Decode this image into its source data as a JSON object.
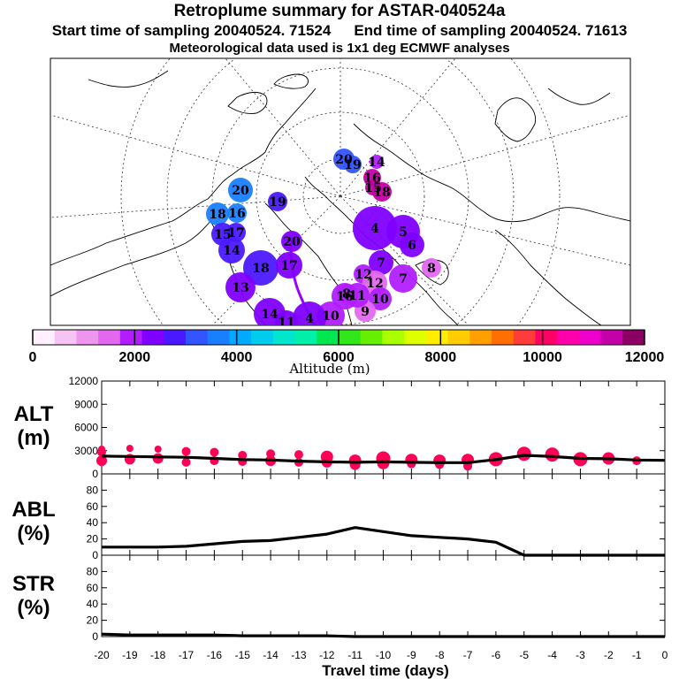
{
  "header": {
    "title": "Retroplume summary for ASTAR-040524a",
    "start_label": "Start time of sampling 20040524. 71524",
    "end_label": "End time of sampling 20040524. 71613",
    "met_label": "Meteorological data used is 1x1 deg ECMWF analyses"
  },
  "colorbar": {
    "colors": [
      "#fff0ff",
      "#f5c4f5",
      "#ee96ee",
      "#e467f0",
      "#b21dff",
      "#7f00ff",
      "#4b19ff",
      "#3355ff",
      "#1a7fff",
      "#00aaff",
      "#00ccee",
      "#00e6cc",
      "#00f0aa",
      "#00e650",
      "#33e61a",
      "#66f000",
      "#aaff00",
      "#ddff00",
      "#ffee00",
      "#ffcc00",
      "#ffa000",
      "#ff7000",
      "#ff3c3c",
      "#ff0066",
      "#ff00aa",
      "#ee00cc",
      "#c400a8",
      "#8c0064"
    ],
    "tick_labels": [
      "0",
      "2000",
      "4000",
      "6000",
      "8000",
      "10000",
      "12000"
    ],
    "label": "Altitude (m)"
  },
  "map": {
    "labels": [
      {
        "text": "20",
        "color": "#3355ff"
      },
      {
        "text": "19",
        "color": "#3355ff"
      },
      {
        "text": "14",
        "color": "#b21dff"
      },
      {
        "text": "16",
        "color": "#c400a8"
      },
      {
        "text": "18",
        "color": "#c400a8"
      },
      {
        "text": "15",
        "color": "#c400a8"
      },
      {
        "text": "20",
        "color": "#1a7fff"
      },
      {
        "text": "18",
        "color": "#1a7fff"
      },
      {
        "text": "16",
        "color": "#1a7fff"
      },
      {
        "text": "19",
        "color": "#4b19ff"
      },
      {
        "text": "15",
        "color": "#4b19ff"
      },
      {
        "text": "17",
        "color": "#4b19ff"
      },
      {
        "text": "14",
        "color": "#4b19ff"
      },
      {
        "text": "18",
        "color": "#4b19ff"
      },
      {
        "text": "20",
        "color": "#7f00ff"
      },
      {
        "text": "13",
        "color": "#7f00ff"
      },
      {
        "text": "17",
        "color": "#7f00ff"
      },
      {
        "text": "14",
        "color": "#7f00ff"
      },
      {
        "text": "4",
        "color": "#7f00ff"
      },
      {
        "text": "5",
        "color": "#7f00ff"
      },
      {
        "text": "6",
        "color": "#7f00ff"
      },
      {
        "text": "7",
        "color": "#7f00ff"
      },
      {
        "text": "12",
        "color": "#b21dff"
      },
      {
        "text": "7",
        "color": "#b21dff"
      },
      {
        "text": "8",
        "color": "#e467f0"
      },
      {
        "text": "12",
        "color": "#e467f0"
      },
      {
        "text": "10",
        "color": "#b21dff"
      },
      {
        "text": "9",
        "color": "#e467f0"
      },
      {
        "text": "11",
        "color": "#b21dff"
      },
      {
        "text": "8",
        "color": "#b21dff"
      },
      {
        "text": "16",
        "color": "#b21dff"
      },
      {
        "text": "10",
        "color": "#b21dff"
      },
      {
        "text": "4",
        "color": "#7f00ff"
      },
      {
        "text": "11",
        "color": "#7f00ff"
      }
    ]
  },
  "chart_data": [
    {
      "type": "line",
      "panel": "ALT",
      "ylabel": "ALT",
      "yunit": "(m)",
      "x": [
        -20,
        -19,
        -18,
        -17,
        -16,
        -15,
        -14,
        -13,
        -12,
        -11,
        -10,
        -9,
        -8,
        -7,
        -6,
        -5,
        -4,
        -3,
        -2,
        -1,
        0
      ],
      "values": [
        2300,
        2250,
        2200,
        2150,
        2000,
        1850,
        1800,
        1650,
        1550,
        1500,
        1550,
        1500,
        1450,
        1450,
        1850,
        2400,
        2250,
        2000,
        1950,
        1800,
        1750
      ],
      "scatter": [
        {
          "x": -20,
          "y": 3200,
          "s": 4
        },
        {
          "x": -20,
          "y": 2800,
          "s": 5
        },
        {
          "x": -20,
          "y": 1700,
          "s": 6
        },
        {
          "x": -19,
          "y": 3300,
          "s": 4
        },
        {
          "x": -19,
          "y": 1900,
          "s": 6
        },
        {
          "x": -18,
          "y": 3200,
          "s": 4
        },
        {
          "x": -18,
          "y": 2000,
          "s": 6
        },
        {
          "x": -17,
          "y": 2900,
          "s": 5
        },
        {
          "x": -17,
          "y": 1500,
          "s": 5
        },
        {
          "x": -16,
          "y": 2800,
          "s": 5
        },
        {
          "x": -16,
          "y": 1700,
          "s": 5
        },
        {
          "x": -15,
          "y": 2400,
          "s": 5
        },
        {
          "x": -15,
          "y": 1600,
          "s": 5
        },
        {
          "x": -14,
          "y": 2600,
          "s": 5
        },
        {
          "x": -14,
          "y": 1700,
          "s": 6
        },
        {
          "x": -13,
          "y": 2500,
          "s": 5
        },
        {
          "x": -13,
          "y": 1500,
          "s": 5
        },
        {
          "x": -12,
          "y": 2200,
          "s": 7
        },
        {
          "x": -12,
          "y": 1500,
          "s": 6
        },
        {
          "x": -11,
          "y": 1700,
          "s": 7
        },
        {
          "x": -11,
          "y": 1200,
          "s": 6
        },
        {
          "x": -10,
          "y": 2000,
          "s": 8
        },
        {
          "x": -10,
          "y": 1400,
          "s": 7
        },
        {
          "x": -9,
          "y": 1800,
          "s": 7
        },
        {
          "x": -9,
          "y": 1300,
          "s": 5
        },
        {
          "x": -8,
          "y": 1700,
          "s": 7
        },
        {
          "x": -8,
          "y": 1200,
          "s": 5
        },
        {
          "x": -7,
          "y": 1800,
          "s": 7
        },
        {
          "x": -7,
          "y": 1000,
          "s": 5
        },
        {
          "x": -6,
          "y": 1900,
          "s": 8
        },
        {
          "x": -5,
          "y": 2600,
          "s": 8
        },
        {
          "x": -4,
          "y": 2500,
          "s": 8
        },
        {
          "x": -3,
          "y": 1900,
          "s": 8
        },
        {
          "x": -2,
          "y": 2000,
          "s": 7
        },
        {
          "x": -1,
          "y": 1700,
          "s": 5
        }
      ],
      "ylim": [
        0,
        12000
      ],
      "yticks": [
        0,
        3000,
        6000,
        9000,
        12000
      ]
    },
    {
      "type": "line",
      "panel": "ABL",
      "ylabel": "ABL",
      "yunit": "(%)",
      "x": [
        -20,
        -19,
        -18,
        -17,
        -16,
        -15,
        -14,
        -13,
        -12,
        -11,
        -10,
        -9,
        -8,
        -7,
        -6,
        -5,
        -4,
        -3,
        -2,
        -1,
        0
      ],
      "values": [
        10,
        10,
        10,
        11,
        14,
        17,
        18,
        22,
        26,
        34,
        29,
        24,
        22,
        20,
        16,
        0,
        0,
        0,
        0,
        0,
        0
      ],
      "ylim": [
        0,
        100
      ],
      "yticks": [
        0,
        20,
        40,
        60,
        80
      ]
    },
    {
      "type": "line",
      "panel": "STR",
      "ylabel": "STR",
      "yunit": "(%)",
      "x": [
        -20,
        -19,
        -18,
        -17,
        -16,
        -15,
        -14,
        -13,
        -12,
        -11,
        -10,
        -9,
        -8,
        -7,
        -6,
        -5,
        -4,
        -3,
        -2,
        -1,
        0
      ],
      "values": [
        3,
        2,
        2,
        2,
        2,
        1,
        1,
        1,
        1,
        0,
        0,
        0,
        0,
        0,
        0,
        0,
        0,
        0,
        0,
        0,
        0
      ],
      "ylim": [
        0,
        100
      ],
      "yticks": [
        0,
        20,
        40,
        60,
        80
      ],
      "xlabel": "Travel time (days)",
      "xtick_labels": [
        "-20",
        "-19",
        "-18",
        "-17",
        "-16",
        "-15",
        "-14",
        "-13",
        "-12",
        "-11",
        "-10",
        "-9",
        "-8",
        "-7",
        "-6",
        "-5",
        "-4",
        "-3",
        "-2",
        "-1",
        "0"
      ]
    }
  ]
}
